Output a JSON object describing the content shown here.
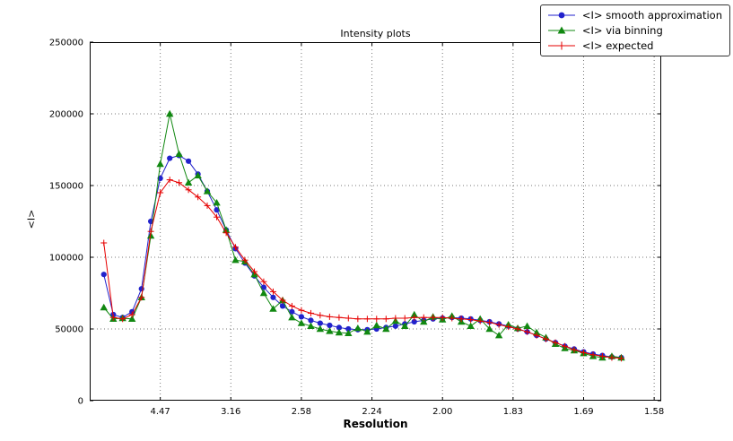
{
  "chart_data": {
    "type": "line",
    "title": "Intensity plots",
    "xlabel": "Resolution",
    "ylabel": "<I>",
    "grid": "dotted",
    "legend_position": "upper-right overlapping figure top",
    "x_scale_note": "x axis linear in 1/d^2; tick labels are resolution d values",
    "xlim": [
      0,
      0.405
    ],
    "ylim": [
      0,
      250000
    ],
    "x_ticks": {
      "positions": [
        0.05,
        0.1,
        0.15,
        0.2,
        0.25,
        0.3,
        0.35,
        0.4
      ],
      "labels": [
        "4.47",
        "3.16",
        "2.58",
        "2.24",
        "2.00",
        "1.83",
        "1.69",
        "1.58"
      ]
    },
    "y_ticks": {
      "positions": [
        0,
        50000,
        100000,
        150000,
        200000,
        250000
      ],
      "labels": [
        "0",
        "50000",
        "100000",
        "150000",
        "200000",
        "250000"
      ]
    },
    "x": [
      0.01,
      0.0167,
      0.0233,
      0.03,
      0.0367,
      0.0433,
      0.05,
      0.0567,
      0.0633,
      0.07,
      0.0767,
      0.0833,
      0.09,
      0.0967,
      0.1033,
      0.11,
      0.1167,
      0.1233,
      0.13,
      0.1367,
      0.1433,
      0.15,
      0.1567,
      0.1633,
      0.17,
      0.1767,
      0.1833,
      0.19,
      0.1967,
      0.2033,
      0.21,
      0.2167,
      0.2233,
      0.23,
      0.2367,
      0.2433,
      0.25,
      0.2567,
      0.2633,
      0.27,
      0.2767,
      0.2833,
      0.29,
      0.2967,
      0.3033,
      0.31,
      0.3167,
      0.3233,
      0.33,
      0.3367,
      0.3433,
      0.35,
      0.3567,
      0.3633,
      0.37,
      0.3767
    ],
    "series": [
      {
        "name": "<I> smooth approximation",
        "color": "#2222cc",
        "marker": "circle",
        "values": [
          88000,
          60000,
          58000,
          62000,
          78000,
          125000,
          155000,
          169000,
          171000,
          167000,
          158000,
          146000,
          133000,
          119000,
          106000,
          96000,
          87000,
          79000,
          72000,
          66000,
          62000,
          58500,
          56000,
          54000,
          52500,
          51000,
          50000,
          49500,
          49500,
          50000,
          51000,
          52000,
          53500,
          55000,
          56000,
          57000,
          57500,
          58000,
          57500,
          57000,
          56000,
          55000,
          53500,
          52000,
          50000,
          48000,
          45500,
          43000,
          40500,
          38000,
          36000,
          34000,
          32500,
          31500,
          30500,
          30000
        ]
      },
      {
        "name": "<I> via binning",
        "color": "#118811",
        "marker": "triangle",
        "values": [
          65000,
          57000,
          57500,
          57000,
          72000,
          115000,
          165000,
          200000,
          172000,
          152000,
          157000,
          146000,
          138000,
          119000,
          98000,
          97000,
          88000,
          75000,
          64000,
          70000,
          58000,
          54000,
          52000,
          50000,
          48500,
          47500,
          47000,
          50500,
          48000,
          52500,
          50000,
          55500,
          52000,
          60000,
          55000,
          58500,
          56500,
          59000,
          55000,
          52000,
          57000,
          50000,
          45500,
          53000,
          50500,
          52000,
          47500,
          44000,
          39500,
          36500,
          35000,
          33000,
          31000,
          30000,
          31000,
          30000
        ]
      },
      {
        "name": "<I> expected",
        "color": "#e60000",
        "marker": "plus",
        "values": [
          110000,
          58000,
          57000,
          60000,
          72000,
          118000,
          145000,
          154000,
          152000,
          147000,
          142000,
          136000,
          128000,
          117000,
          107000,
          98000,
          90000,
          83000,
          76000,
          70000,
          66000,
          63000,
          61000,
          59500,
          58500,
          58000,
          57500,
          57000,
          57000,
          57000,
          57000,
          57500,
          57500,
          58000,
          58000,
          58000,
          58000,
          57500,
          57000,
          56500,
          55500,
          54500,
          53000,
          51500,
          50000,
          48000,
          45500,
          43000,
          40500,
          38000,
          35500,
          33500,
          32000,
          31000,
          30000,
          29500
        ]
      }
    ]
  }
}
